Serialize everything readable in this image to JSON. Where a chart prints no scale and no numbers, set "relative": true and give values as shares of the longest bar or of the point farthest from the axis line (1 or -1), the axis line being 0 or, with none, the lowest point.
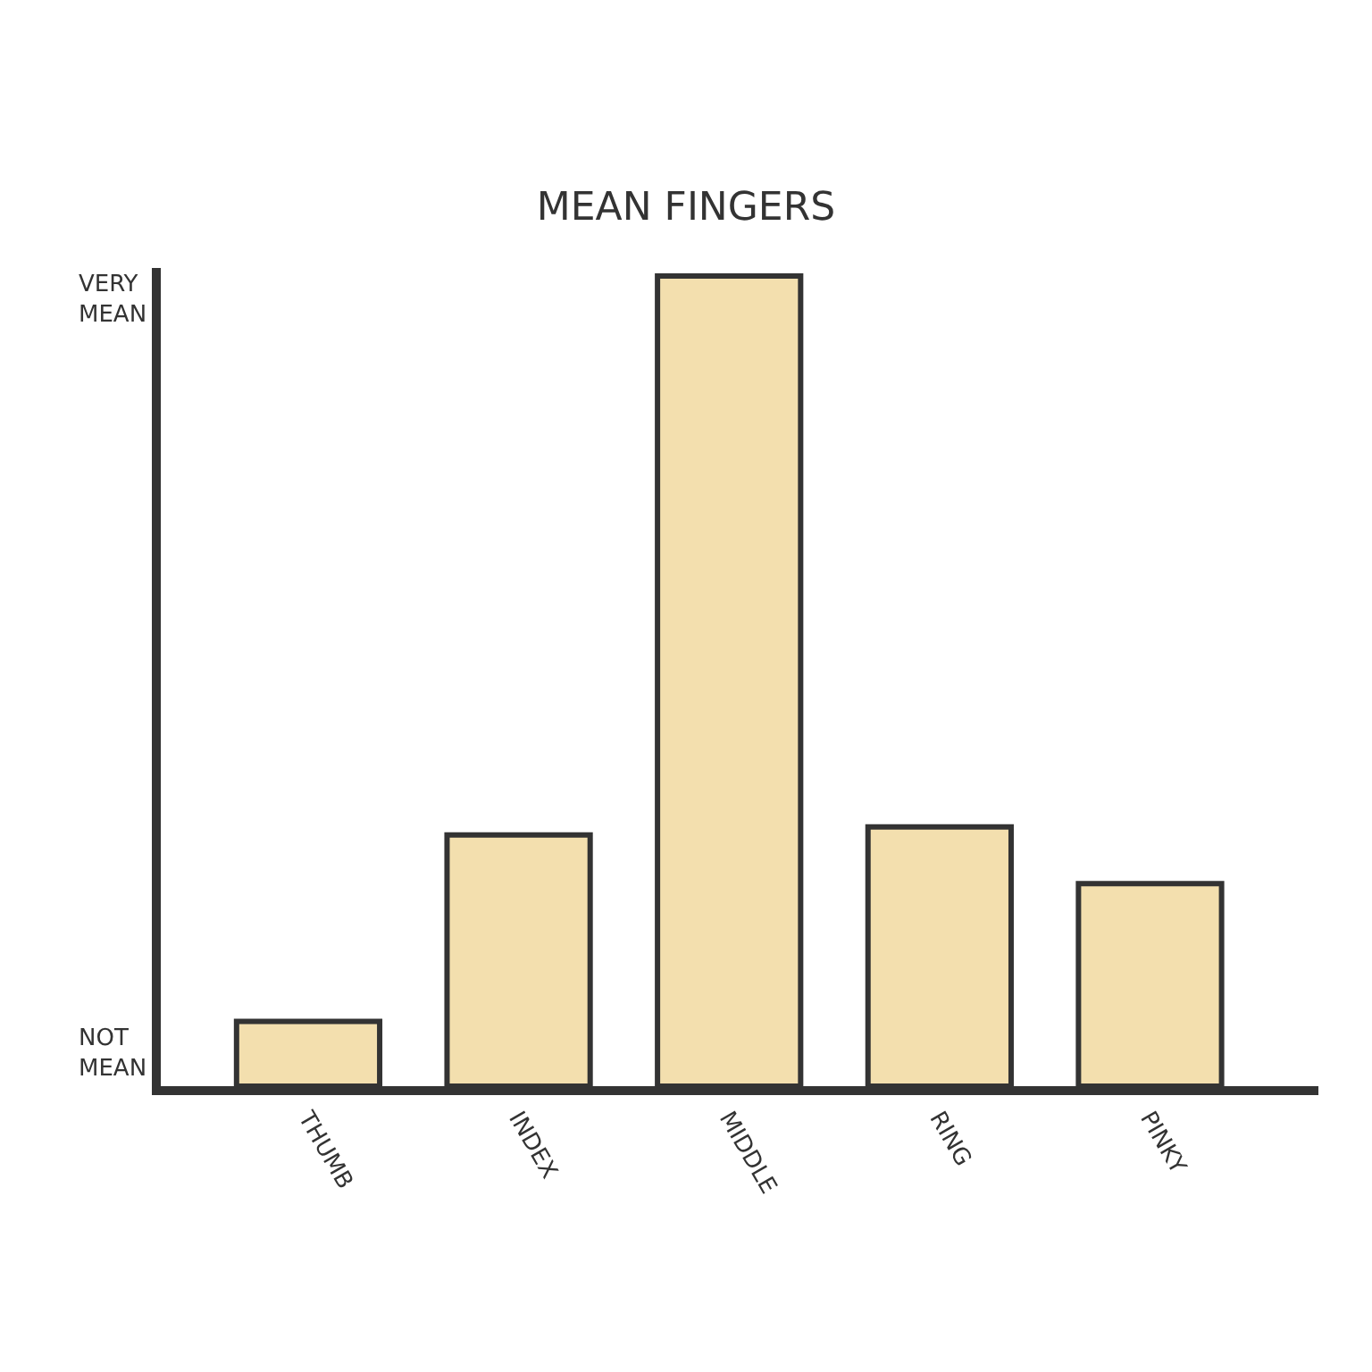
{
  "chart_data": {
    "type": "bar",
    "title": "MEAN FINGERS",
    "categories": [
      "THUMB",
      "INDEX",
      "MIDDLE",
      "RING",
      "PINKY"
    ],
    "values": [
      0.08,
      0.31,
      1.0,
      0.32,
      0.25
    ],
    "color": "#f3dfae",
    "relative": true,
    "annotations": [
      "VERY\nMEAN",
      "NOT\nMEAN"
    ],
    "legend": false
  }
}
